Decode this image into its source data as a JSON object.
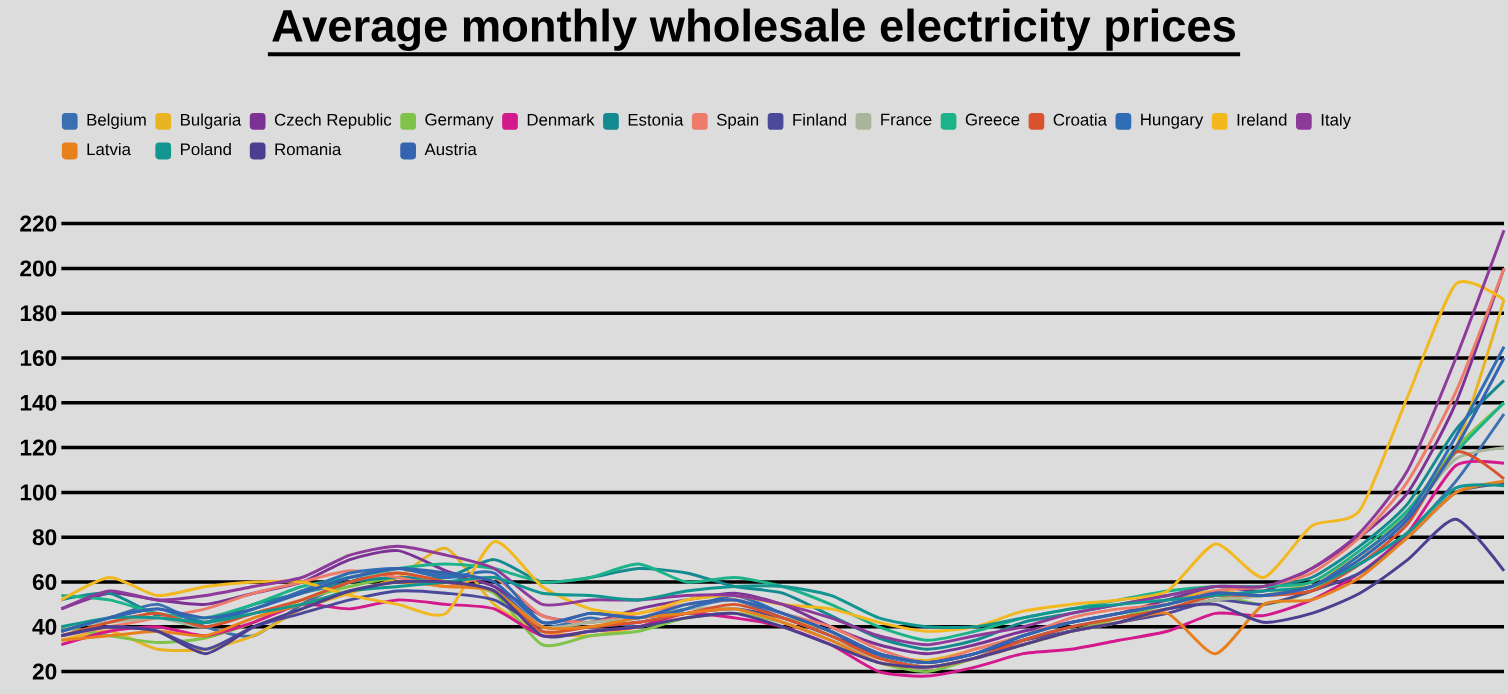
{
  "chart_data": {
    "type": "line",
    "title": "Average monthly wholesale electricity prices",
    "categories": [
      null,
      null,
      null,
      null,
      null,
      null,
      null,
      null,
      null,
      null,
      null,
      null,
      null,
      null,
      null,
      null,
      null,
      null,
      null,
      null,
      null,
      null,
      null,
      null,
      null,
      null,
      null,
      null,
      null,
      null,
      null
    ],
    "ylim": [
      10,
      220
    ],
    "yticks": [
      20,
      40,
      60,
      80,
      100,
      120,
      140,
      160,
      180,
      200,
      220
    ],
    "grid": "y",
    "legend": "top left",
    "line_style": "solid",
    "series": [
      {
        "name": "Belgium",
        "color": "#3a6fb0",
        "values": [
          38,
          44,
          50,
          40,
          36,
          50,
          60,
          66,
          63,
          58,
          40,
          44,
          40,
          48,
          52,
          44,
          38,
          27,
          22,
          26,
          34,
          40,
          44,
          48,
          52,
          54,
          56,
          68,
          82,
          105,
          135
        ]
      },
      {
        "name": "Bulgaria",
        "color": "#e8b424",
        "values": [
          34,
          38,
          30,
          30,
          36,
          48,
          55,
          62,
          75,
          50,
          38,
          36,
          40,
          44,
          46,
          44,
          38,
          28,
          25,
          30,
          36,
          42,
          46,
          52,
          56,
          54,
          60,
          72,
          90,
          120,
          186
        ]
      },
      {
        "name": "Czech Republic",
        "color": "#7b3294",
        "values": [
          48,
          55,
          52,
          50,
          55,
          60,
          70,
          74,
          65,
          58,
          45,
          42,
          48,
          52,
          55,
          50,
          40,
          32,
          28,
          32,
          38,
          42,
          46,
          52,
          58,
          56,
          66,
          80,
          100,
          140,
          200
        ]
      },
      {
        "name": "Germany",
        "color": "#7fc34a",
        "values": [
          40,
          36,
          33,
          35,
          42,
          52,
          58,
          62,
          60,
          55,
          32,
          36,
          38,
          44,
          46,
          42,
          34,
          24,
          20,
          26,
          32,
          38,
          44,
          50,
          54,
          50,
          56,
          70,
          92,
          120,
          140
        ]
      },
      {
        "name": "Denmark",
        "color": "#d4198c",
        "values": [
          32,
          38,
          40,
          36,
          42,
          50,
          48,
          52,
          50,
          48,
          36,
          38,
          40,
          46,
          44,
          40,
          32,
          20,
          18,
          22,
          28,
          30,
          34,
          38,
          46,
          45,
          52,
          64,
          82,
          112,
          113
        ]
      },
      {
        "name": "Estonia",
        "color": "#138a8f",
        "values": [
          52,
          55,
          45,
          42,
          50,
          55,
          60,
          62,
          62,
          70,
          60,
          62,
          66,
          64,
          58,
          55,
          45,
          35,
          30,
          34,
          42,
          46,
          50,
          54,
          58,
          58,
          62,
          76,
          95,
          128,
          150
        ]
      },
      {
        "name": "Spain",
        "color": "#ee7c6b",
        "values": [
          36,
          40,
          44,
          48,
          55,
          60,
          65,
          62,
          58,
          62,
          45,
          42,
          46,
          50,
          52,
          46,
          40,
          30,
          24,
          30,
          36,
          44,
          48,
          50,
          56,
          58,
          64,
          80,
          105,
          145,
          200
        ]
      },
      {
        "name": "Finland",
        "color": "#4b4a9a",
        "values": [
          36,
          40,
          38,
          30,
          40,
          46,
          52,
          56,
          55,
          52,
          40,
          40,
          42,
          46,
          48,
          44,
          36,
          28,
          24,
          28,
          34,
          38,
          42,
          46,
          52,
          50,
          56,
          64,
          80,
          100,
          104
        ]
      },
      {
        "name": "France",
        "color": "#a9b59a",
        "values": [
          40,
          42,
          44,
          40,
          48,
          55,
          62,
          64,
          60,
          56,
          40,
          42,
          44,
          48,
          48,
          42,
          34,
          26,
          22,
          26,
          32,
          38,
          42,
          48,
          52,
          54,
          58,
          70,
          90,
          115,
          120
        ]
      },
      {
        "name": "Greece",
        "color": "#1db38a",
        "values": [
          54,
          52,
          46,
          44,
          50,
          58,
          62,
          66,
          68,
          66,
          60,
          62,
          68,
          60,
          62,
          58,
          50,
          40,
          34,
          38,
          44,
          48,
          52,
          56,
          58,
          58,
          60,
          74,
          92,
          118,
          140
        ]
      },
      {
        "name": "Croatia",
        "color": "#d9532e",
        "values": [
          36,
          42,
          46,
          40,
          46,
          52,
          60,
          64,
          60,
          56,
          38,
          40,
          42,
          46,
          50,
          44,
          36,
          26,
          22,
          26,
          34,
          40,
          44,
          48,
          54,
          54,
          56,
          68,
          86,
          118,
          106
        ]
      },
      {
        "name": "Hungary",
        "color": "#2f6db5",
        "values": [
          38,
          44,
          48,
          42,
          48,
          56,
          64,
          66,
          62,
          64,
          42,
          46,
          44,
          48,
          54,
          46,
          38,
          28,
          24,
          28,
          36,
          42,
          46,
          50,
          55,
          54,
          58,
          72,
          90,
          125,
          165
        ]
      },
      {
        "name": "Ireland",
        "color": "#f2b81d",
        "values": [
          52,
          62,
          54,
          58,
          60,
          60,
          54,
          50,
          46,
          78,
          58,
          48,
          46,
          52,
          54,
          50,
          48,
          42,
          38,
          40,
          47,
          50,
          52,
          56,
          77,
          62,
          85,
          92,
          143,
          193,
          186
        ]
      },
      {
        "name": "Italy",
        "color": "#8e3a9a",
        "values": [
          48,
          56,
          52,
          54,
          58,
          62,
          72,
          76,
          72,
          66,
          50,
          52,
          52,
          54,
          54,
          50,
          44,
          36,
          32,
          36,
          40,
          46,
          50,
          54,
          58,
          58,
          66,
          82,
          110,
          160,
          217
        ]
      },
      {
        "name": "Latvia",
        "color": "#e8801e",
        "values": [
          34,
          36,
          38,
          36,
          44,
          50,
          56,
          60,
          58,
          56,
          40,
          40,
          44,
          46,
          48,
          42,
          34,
          24,
          22,
          26,
          32,
          38,
          42,
          46,
          28,
          50,
          52,
          62,
          80,
          100,
          105
        ]
      },
      {
        "name": "Poland",
        "color": "#129690",
        "values": [
          40,
          44,
          44,
          42,
          46,
          50,
          56,
          58,
          60,
          62,
          55,
          54,
          52,
          56,
          58,
          58,
          54,
          44,
          40,
          40,
          44,
          48,
          50,
          52,
          54,
          56,
          58,
          68,
          82,
          102,
          103
        ]
      },
      {
        "name": "Romania",
        "color": "#4d3f8f",
        "values": [
          36,
          40,
          38,
          28,
          40,
          48,
          56,
          60,
          60,
          56,
          36,
          38,
          40,
          44,
          46,
          40,
          32,
          24,
          22,
          26,
          32,
          38,
          42,
          48,
          50,
          42,
          46,
          55,
          70,
          88,
          65
        ]
      },
      {
        "name": "Austria",
        "color": "#3463b0",
        "values": [
          38,
          44,
          48,
          44,
          48,
          55,
          62,
          66,
          64,
          60,
          42,
          46,
          44,
          50,
          52,
          46,
          38,
          28,
          24,
          28,
          36,
          42,
          46,
          50,
          55,
          54,
          58,
          70,
          88,
          120,
          160
        ]
      }
    ]
  }
}
